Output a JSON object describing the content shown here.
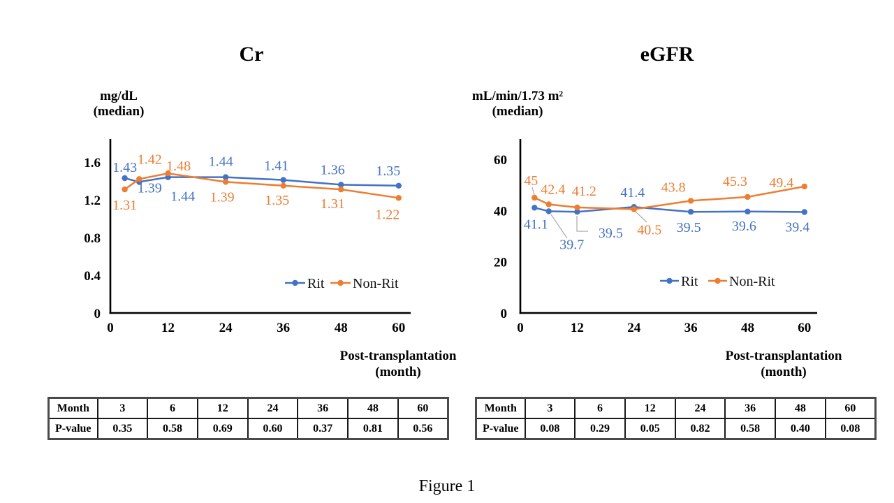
{
  "figure_caption": "Figure 1",
  "colors": {
    "rit_blue": "#4472C4",
    "non_rit_orange": "#ED7D31",
    "axis_black": "#000000",
    "leader_gray": "#ABABAB"
  },
  "chart_data": [
    {
      "id": "cr",
      "type": "line",
      "title": "Cr",
      "ylabel": "mg/dL (median)",
      "ylabel_lines": [
        "mg/dL",
        "(median)"
      ],
      "xlabel": "Post-transplantation (month)",
      "xlabel_lines": [
        "Post-transplantation",
        "(month)"
      ],
      "x": [
        3,
        6,
        12,
        24,
        36,
        48,
        60
      ],
      "x_ticks": [
        0,
        12,
        24,
        36,
        48,
        60
      ],
      "x_tick_labels": [
        "0",
        "12",
        "24",
        "36",
        "48",
        "60"
      ],
      "y_ticks": [
        0,
        0.4,
        0.8,
        1.2,
        1.6
      ],
      "y_tick_labels": [
        "0",
        "0.4",
        "0.8",
        "1.2",
        "1.6"
      ],
      "ylim": [
        0,
        1.85
      ],
      "grid": false,
      "legend_position": "inside-lower-right",
      "series": [
        {
          "name": "Rit",
          "color": "#4472C4",
          "values": [
            1.43,
            1.39,
            1.44,
            1.44,
            1.41,
            1.36,
            1.35
          ],
          "labels": [
            "1.43",
            "1.39",
            "1.44",
            "1.44",
            "1.41",
            "1.36",
            "1.35"
          ]
        },
        {
          "name": "Non-Rit",
          "color": "#ED7D31",
          "values": [
            1.31,
            1.42,
            1.48,
            1.39,
            1.35,
            1.31,
            1.22
          ],
          "labels": [
            "1.31",
            "1.42",
            "1.48",
            "1.39",
            "1.35",
            "1.31",
            "1.22"
          ]
        }
      ]
    },
    {
      "id": "egfr",
      "type": "line",
      "title": "eGFR",
      "ylabel": "mL/min/1.73 m² (median)",
      "ylabel_lines": [
        "mL/min/1.73 m²",
        "(median)"
      ],
      "xlabel": "Post-transplantation (month)",
      "xlabel_lines": [
        "Post-transplantation",
        "(month)"
      ],
      "x": [
        3,
        6,
        12,
        24,
        36,
        48,
        60
      ],
      "x_ticks": [
        0,
        12,
        24,
        36,
        48,
        60
      ],
      "x_tick_labels": [
        "0",
        "12",
        "24",
        "36",
        "48",
        "60"
      ],
      "y_ticks": [
        0,
        20,
        40,
        60
      ],
      "y_tick_labels": [
        "0",
        "20",
        "40",
        "60"
      ],
      "ylim": [
        0,
        68
      ],
      "grid": false,
      "legend_position": "inside-lower-right",
      "series": [
        {
          "name": "Rit",
          "color": "#4472C4",
          "values": [
            41.1,
            39.7,
            39.5,
            41.4,
            39.5,
            39.6,
            39.4
          ],
          "labels": [
            "41.1",
            "39.7",
            "39.5",
            "41.4",
            "39.5",
            "39.6",
            "39.4"
          ]
        },
        {
          "name": "Non-Rit",
          "color": "#ED7D31",
          "values": [
            45,
            42.4,
            41.2,
            40.5,
            43.8,
            45.3,
            49.4
          ],
          "labels": [
            "45",
            "42.4",
            "41.2",
            "40.5",
            "43.8",
            "45.3",
            "49.4"
          ]
        }
      ]
    }
  ],
  "p_value_tables": [
    {
      "chart": "Cr",
      "col_header_label": "Month",
      "row_label": "P-value",
      "months": [
        "3",
        "6",
        "12",
        "24",
        "36",
        "48",
        "60"
      ],
      "p_values": [
        "0.35",
        "0.58",
        "0.69",
        "0.60",
        "0.37",
        "0.81",
        "0.56"
      ]
    },
    {
      "chart": "eGFR",
      "col_header_label": "Month",
      "row_label": "P-value",
      "months": [
        "3",
        "6",
        "12",
        "24",
        "36",
        "48",
        "60"
      ],
      "p_values": [
        "0.08",
        "0.29",
        "0.05",
        "0.82",
        "0.58",
        "0.40",
        "0.08"
      ]
    }
  ]
}
